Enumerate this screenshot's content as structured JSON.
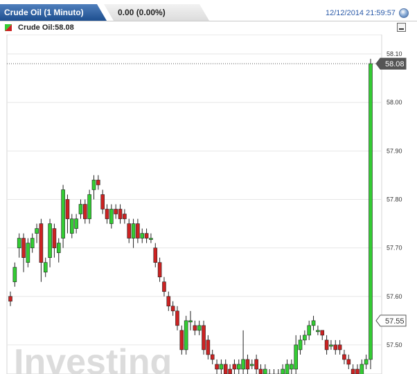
{
  "header": {
    "title": "Crude Oil (1 Minuto)",
    "change": "0.00 (0.00%)",
    "timestamp": "12/12/2014 21:59:57"
  },
  "legend": {
    "label": "Crude Oil:58.08"
  },
  "watermark": "Investing",
  "colors": {
    "tab_blue": "#2a5c9e",
    "up": "#33cc33",
    "down": "#cc2222",
    "timestamp_blue": "#2a5aa8"
  },
  "icons": [
    "refresh-icon",
    "minimize-icon",
    "candle-legend-icon"
  ],
  "chart_data": {
    "type": "candlestick",
    "y_axis": {
      "min": 57.44,
      "max": 58.14,
      "ticks": [
        "58.10",
        "58.00",
        "57.90",
        "57.80",
        "57.70",
        "57.60",
        "57.50"
      ],
      "position": "right"
    },
    "price_labels": [
      {
        "label": "58.08",
        "value": 58.08
      },
      {
        "label": "57.55",
        "value": 57.55
      }
    ],
    "grid": true,
    "candles": [
      [
        57.6,
        57.59,
        57.61,
        57.58
      ],
      [
        57.63,
        57.66,
        57.67,
        57.62
      ],
      [
        57.7,
        57.72,
        57.73,
        57.68
      ],
      [
        57.72,
        57.68,
        57.73,
        57.65
      ],
      [
        57.67,
        57.71,
        57.72,
        57.66
      ],
      [
        57.7,
        57.72,
        57.73,
        57.69
      ],
      [
        57.73,
        57.74,
        57.75,
        57.71
      ],
      [
        57.75,
        57.67,
        57.76,
        57.63
      ],
      [
        57.65,
        57.67,
        57.68,
        57.64
      ],
      [
        57.68,
        57.75,
        57.76,
        57.66
      ],
      [
        57.74,
        57.7,
        57.75,
        57.68
      ],
      [
        57.69,
        57.71,
        57.72,
        57.67
      ],
      [
        57.72,
        57.82,
        57.83,
        57.7
      ],
      [
        57.8,
        57.76,
        57.81,
        57.73
      ],
      [
        57.73,
        57.76,
        57.77,
        57.72
      ],
      [
        57.74,
        57.76,
        57.77,
        57.73
      ],
      [
        57.77,
        57.79,
        57.8,
        57.76
      ],
      [
        57.79,
        57.76,
        57.8,
        57.75
      ],
      [
        57.76,
        57.81,
        57.82,
        57.75
      ],
      [
        57.82,
        57.84,
        57.85,
        57.8
      ],
      [
        57.84,
        57.83,
        57.85,
        57.82
      ],
      [
        57.81,
        57.78,
        57.82,
        57.77
      ],
      [
        57.78,
        57.76,
        57.79,
        57.75
      ],
      [
        57.75,
        57.78,
        57.79,
        57.74
      ],
      [
        57.78,
        57.77,
        57.79,
        57.76
      ],
      [
        57.78,
        57.76,
        57.79,
        57.75
      ],
      [
        57.77,
        57.76,
        57.78,
        57.75
      ],
      [
        57.75,
        57.72,
        57.76,
        57.71
      ],
      [
        57.72,
        57.75,
        57.76,
        57.7
      ],
      [
        57.75,
        57.72,
        57.76,
        57.71
      ],
      [
        57.72,
        57.73,
        57.74,
        57.71
      ],
      [
        57.73,
        57.72,
        57.74,
        57.71
      ],
      [
        57.72,
        57.72,
        57.73,
        57.71
      ],
      [
        57.7,
        57.67,
        57.71,
        57.66
      ],
      [
        57.67,
        57.64,
        57.68,
        57.63
      ],
      [
        57.63,
        57.61,
        57.64,
        57.6
      ],
      [
        57.6,
        57.58,
        57.61,
        57.57
      ],
      [
        57.58,
        57.57,
        57.59,
        57.56
      ],
      [
        57.57,
        57.54,
        57.58,
        57.53
      ],
      [
        57.53,
        57.49,
        57.54,
        57.48
      ],
      [
        57.49,
        57.55,
        57.56,
        57.48
      ],
      [
        57.55,
        57.55,
        57.57,
        57.53
      ],
      [
        57.54,
        57.53,
        57.55,
        57.52
      ],
      [
        57.53,
        57.54,
        57.55,
        57.52
      ],
      [
        57.54,
        57.49,
        57.55,
        57.48
      ],
      [
        57.51,
        57.48,
        57.52,
        57.47
      ],
      [
        57.48,
        57.47,
        57.49,
        57.46
      ],
      [
        57.46,
        57.45,
        57.47,
        57.44
      ],
      [
        57.45,
        57.46,
        57.47,
        57.44
      ],
      [
        57.46,
        57.44,
        57.47,
        57.43
      ],
      [
        57.45,
        57.44,
        57.46,
        57.43
      ],
      [
        57.46,
        57.45,
        57.47,
        57.44
      ],
      [
        57.45,
        57.46,
        57.47,
        57.44
      ],
      [
        57.45,
        57.47,
        57.53,
        57.44
      ],
      [
        57.47,
        57.45,
        57.48,
        57.44
      ],
      [
        57.46,
        57.46,
        57.47,
        57.45
      ],
      [
        57.47,
        57.45,
        57.48,
        57.44
      ],
      [
        57.45,
        57.44,
        57.46,
        57.43
      ],
      [
        57.44,
        57.45,
        57.46,
        57.43
      ],
      [
        57.44,
        57.44,
        57.45,
        57.43
      ],
      [
        57.43,
        57.44,
        57.45,
        57.42
      ],
      [
        57.44,
        57.44,
        57.45,
        57.43
      ],
      [
        57.44,
        57.45,
        57.46,
        57.43
      ],
      [
        57.44,
        57.46,
        57.47,
        57.43
      ],
      [
        57.45,
        57.46,
        57.47,
        57.44
      ],
      [
        57.45,
        57.5,
        57.52,
        57.44
      ],
      [
        57.49,
        57.51,
        57.52,
        57.48
      ],
      [
        57.51,
        57.52,
        57.53,
        57.5
      ],
      [
        57.52,
        57.54,
        57.55,
        57.51
      ],
      [
        57.54,
        57.55,
        57.56,
        57.53
      ],
      [
        57.53,
        57.53,
        57.54,
        57.52
      ],
      [
        57.53,
        57.52,
        57.53,
        57.51
      ],
      [
        57.51,
        57.49,
        57.52,
        57.48
      ],
      [
        57.5,
        57.5,
        57.51,
        57.49
      ],
      [
        57.5,
        57.49,
        57.51,
        57.48
      ],
      [
        57.5,
        57.49,
        57.51,
        57.48
      ],
      [
        57.48,
        57.47,
        57.49,
        57.46
      ],
      [
        57.47,
        57.46,
        57.48,
        57.45
      ],
      [
        57.45,
        57.44,
        57.46,
        57.43
      ],
      [
        57.45,
        57.44,
        57.46,
        57.43
      ],
      [
        57.43,
        57.46,
        57.47,
        57.42
      ],
      [
        57.46,
        57.47,
        57.48,
        57.45
      ],
      [
        57.47,
        58.08,
        58.09,
        57.45
      ]
    ]
  }
}
